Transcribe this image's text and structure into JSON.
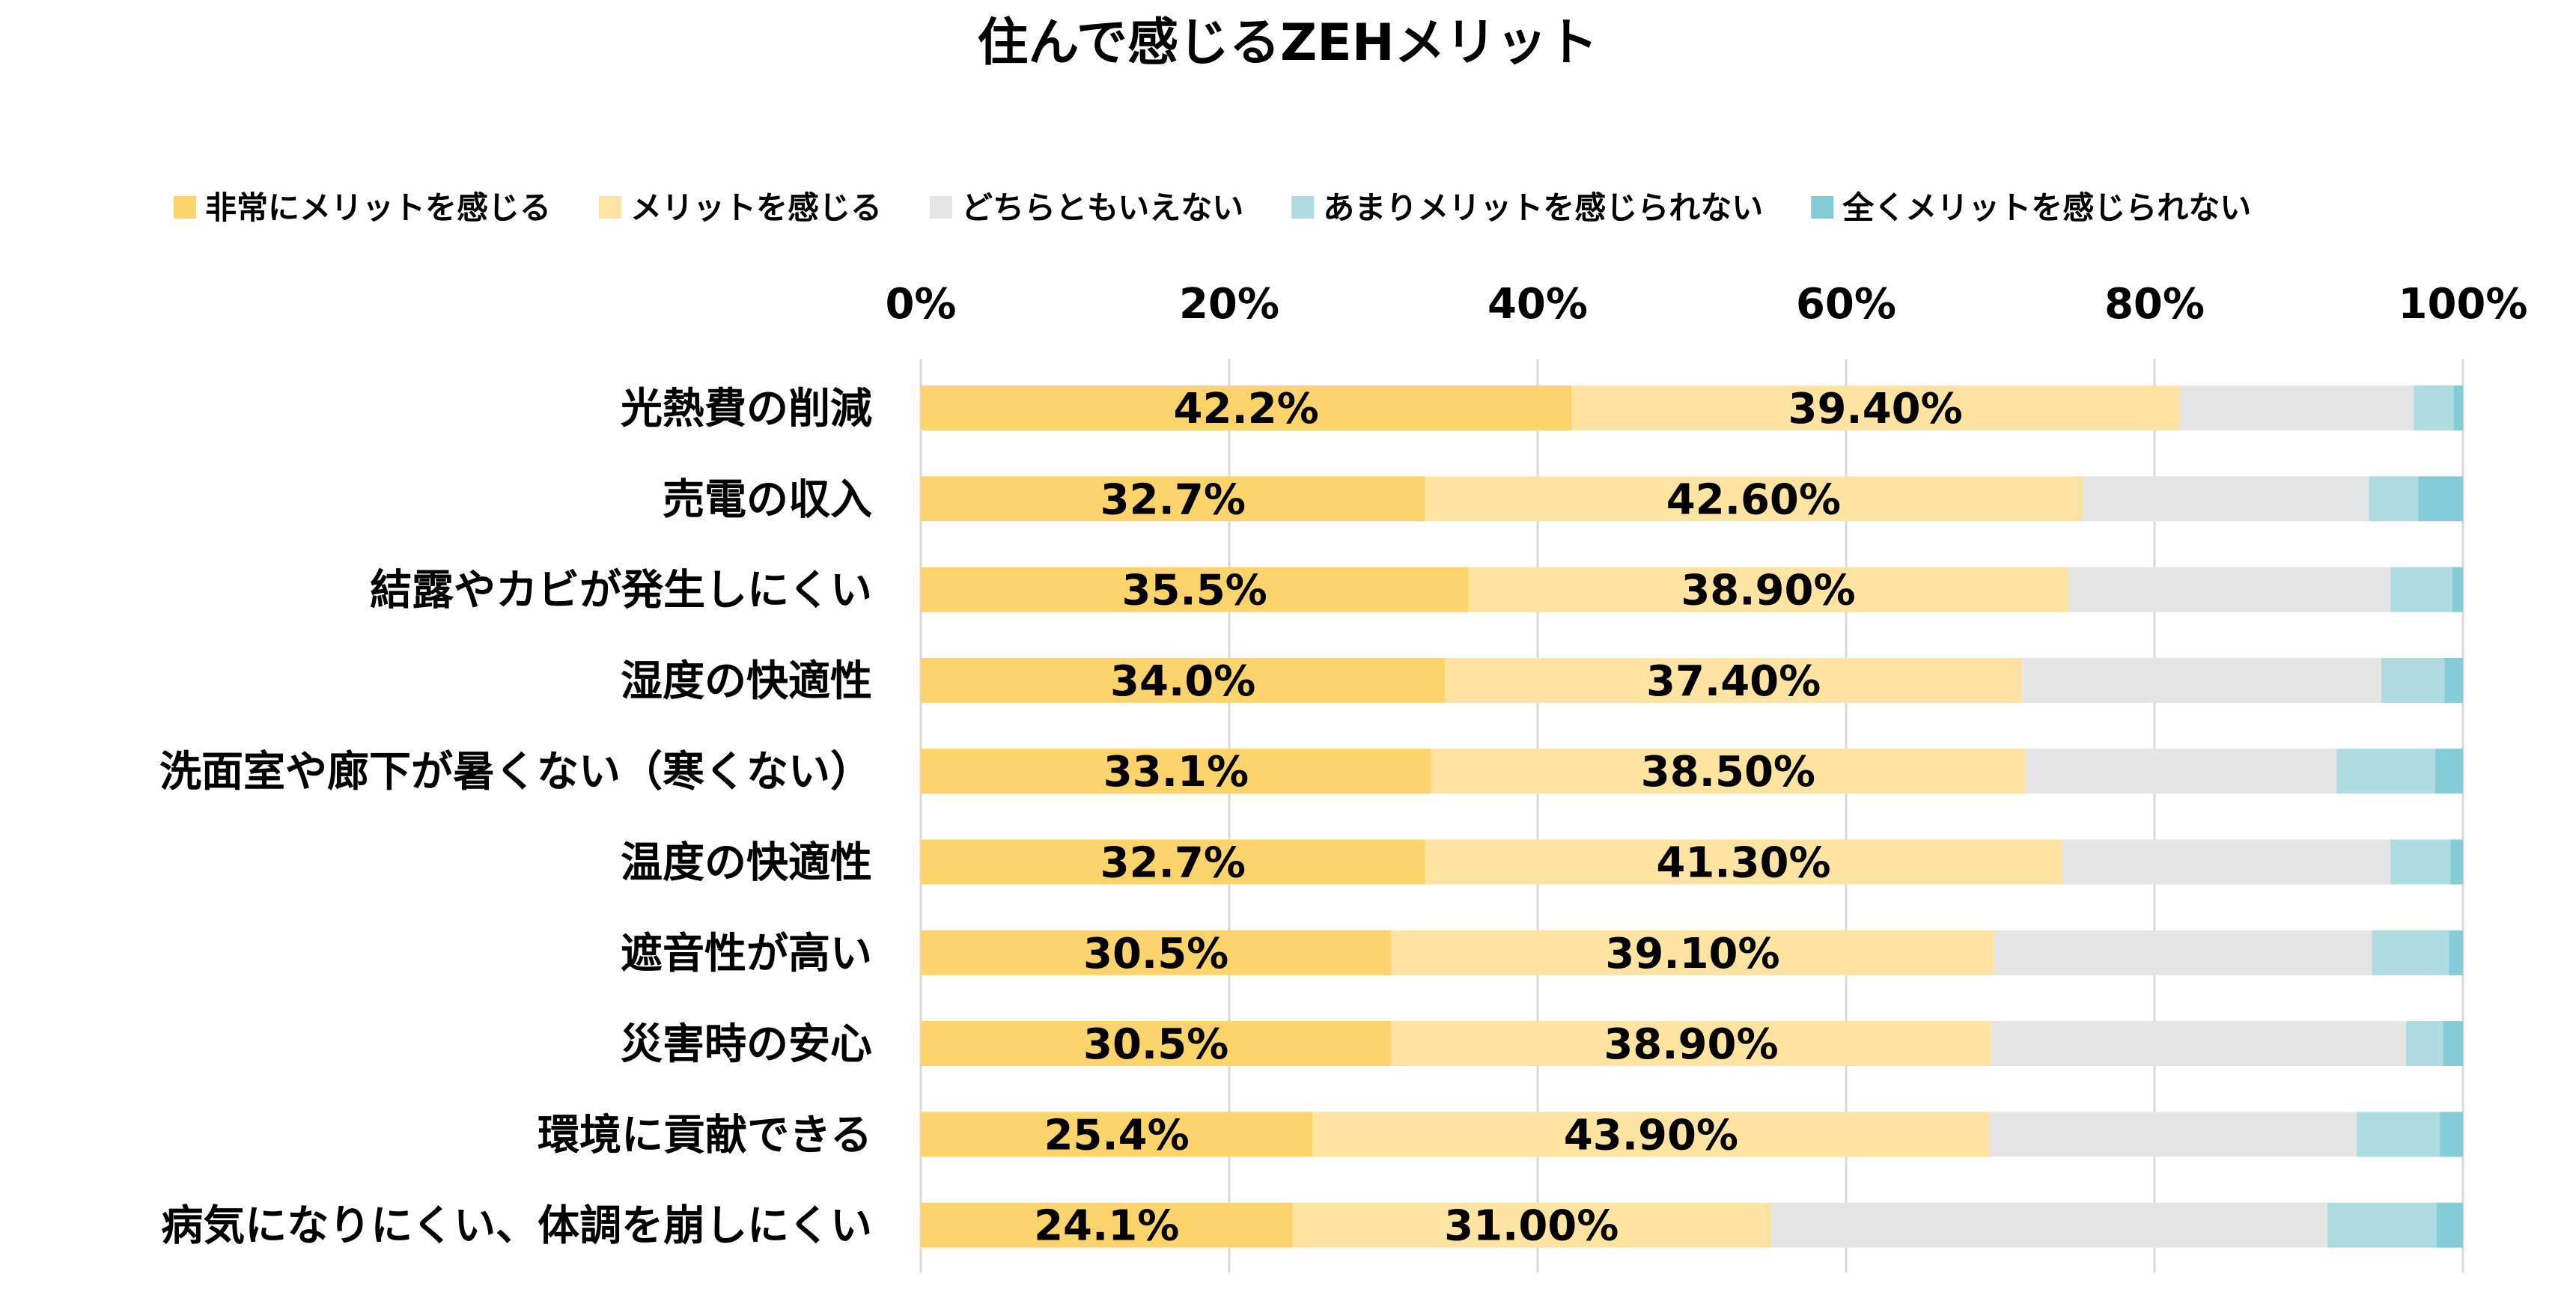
{
  "chart_data": {
    "type": "bar",
    "orientation": "horizontal",
    "stacked": true,
    "title": "住んで感じるZEHメリット",
    "legend_position": "top",
    "grid": true,
    "xlim": [
      0,
      100
    ],
    "x_ticks": [
      "0%",
      "20%",
      "40%",
      "60%",
      "80%",
      "100%"
    ],
    "categories": [
      "光熱費の削減",
      "売電の収入",
      "結露やカビが発生しにくい",
      "湿度の快適性",
      "洗面室や廊下が暑くない（寒くない）",
      "温度の快適性",
      "遮音性が高い",
      "災害時の安心",
      "環境に貢献できる",
      "病気になりにくい、体調を崩しにくい"
    ],
    "series": [
      {
        "name": "非常にメリットを感じる",
        "color": "#FDD46B",
        "values": [
          42.2,
          32.7,
          35.5,
          34.0,
          33.1,
          32.7,
          30.5,
          30.5,
          25.4,
          24.1
        ],
        "labels": [
          "42.2%",
          "32.7%",
          "35.5%",
          "34.0%",
          "33.1%",
          "32.7%",
          "30.5%",
          "30.5%",
          "25.4%",
          "24.1%"
        ]
      },
      {
        "name": "メリットを感じる",
        "color": "#FEE4A0",
        "values": [
          39.4,
          42.6,
          38.9,
          37.4,
          38.5,
          41.3,
          39.1,
          38.9,
          43.9,
          31.0
        ],
        "labels": [
          "39.40%",
          "42.60%",
          "38.90%",
          "37.40%",
          "38.50%",
          "41.30%",
          "39.10%",
          "38.90%",
          "43.90%",
          "31.00%"
        ]
      },
      {
        "name": "どちらともいえない",
        "color": "#E5E5E5",
        "values": [
          15.2,
          18.6,
          20.9,
          23.3,
          20.2,
          21.3,
          24.5,
          26.9,
          23.8,
          36.1
        ]
      },
      {
        "name": "あまりメリットを感じられない",
        "color": "#ADDCE3",
        "values": [
          2.6,
          3.2,
          4.0,
          4.1,
          6.4,
          3.9,
          5.0,
          2.4,
          5.4,
          7.1
        ]
      },
      {
        "name": "全くメリットを感じられない",
        "color": "#84CCD8",
        "values": [
          0.6,
          2.9,
          0.7,
          1.2,
          1.8,
          0.8,
          0.9,
          1.3,
          1.5,
          1.7
        ]
      }
    ]
  }
}
